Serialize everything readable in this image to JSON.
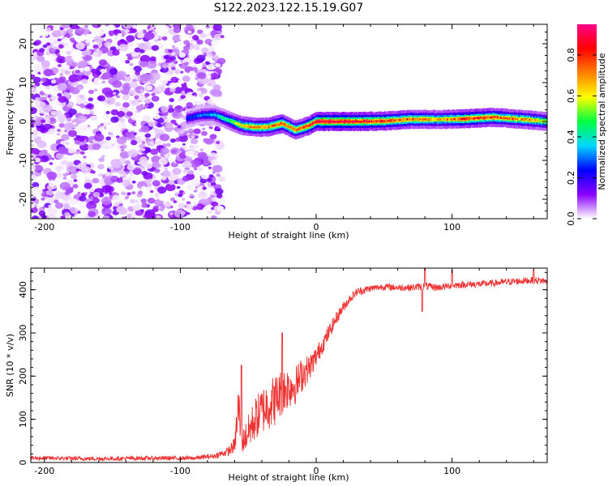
{
  "figure": {
    "title": "S122.2023.122.15.19.G07"
  },
  "chart_data": [
    {
      "type": "heatmap",
      "xlabel": "Height of straight line (km)",
      "ylabel": "Frequency (Hz)",
      "xlim": [
        -210,
        170
      ],
      "ylim": [
        -25,
        25
      ],
      "xticks": [
        -200,
        -100,
        0,
        100
      ],
      "xtick_labels": [
        "-200",
        "-100",
        "0",
        "100"
      ],
      "yticks": [
        -20,
        -10,
        0,
        10,
        20
      ],
      "ytick_labels": [
        "-20",
        "-10",
        "0",
        "10",
        "20"
      ],
      "colorbar": {
        "label": "Normalized spectral amplitude",
        "range": [
          0,
          0.95
        ],
        "ticks": [
          0.0,
          0.2,
          0.4,
          0.6,
          0.8
        ],
        "tick_labels": [
          "0.0",
          "0.2",
          "0.4",
          "0.6",
          "0.8"
        ],
        "colormap": [
          "#ffffff",
          "#8a00ff",
          "#0000ff",
          "#00d8ff",
          "#00ff40",
          "#ffff00",
          "#ff8000",
          "#ff0000",
          "#ff0088"
        ]
      },
      "noise_region": {
        "x_range": [
          -210,
          -75
        ],
        "note_amplitude_max": 0.15
      },
      "ridge": {
        "x": [
          -95,
          -85,
          -75,
          -65,
          -55,
          -45,
          -35,
          -25,
          -15,
          -5,
          0,
          10,
          30,
          50,
          70,
          90,
          110,
          130,
          150,
          170
        ],
        "frequency": [
          0.8,
          1.6,
          1.8,
          0.4,
          -1.0,
          -1.5,
          -1.4,
          -0.5,
          -2.2,
          -1.0,
          0.0,
          0.0,
          0.0,
          0.1,
          0.6,
          0.5,
          0.7,
          1.1,
          0.6,
          0.0
        ],
        "amplitude": [
          0.25,
          0.3,
          0.35,
          0.45,
          0.6,
          0.7,
          0.7,
          0.75,
          0.7,
          0.8,
          0.85,
          0.9,
          0.85,
          0.8,
          0.75,
          0.65,
          0.8,
          0.75,
          0.7,
          0.6
        ]
      }
    },
    {
      "type": "line",
      "xlabel": "Height of straight line (km)",
      "ylabel": "SNR (10 * v/v)",
      "xlim": [
        -210,
        170
      ],
      "ylim": [
        0,
        450
      ],
      "xticks": [
        -200,
        -100,
        0,
        100
      ],
      "xtick_labels": [
        "-200",
        "-100",
        "0",
        "100"
      ],
      "yticks": [
        0,
        100,
        200,
        300,
        400
      ],
      "ytick_labels": [
        "0",
        "100",
        "200",
        "300",
        "400"
      ],
      "color": "#ee3333",
      "series": [
        {
          "name": "SNR",
          "x": [
            -210,
            -190,
            -170,
            -150,
            -130,
            -110,
            -90,
            -75,
            -65,
            -60,
            -57,
            -55,
            -50,
            -45,
            -40,
            -35,
            -30,
            -25,
            -20,
            -15,
            -10,
            -5,
            0,
            5,
            10,
            15,
            20,
            25,
            30,
            40,
            50,
            60,
            70,
            80,
            90,
            100,
            110,
            120,
            130,
            140,
            150,
            160,
            170
          ],
          "y": [
            10,
            10,
            9,
            9,
            10,
            10,
            10,
            15,
            25,
            40,
            130,
            45,
            70,
            100,
            120,
            135,
            145,
            165,
            175,
            180,
            205,
            220,
            245,
            275,
            305,
            335,
            360,
            380,
            395,
            403,
            407,
            405,
            405,
            408,
            405,
            410,
            412,
            413,
            415,
            418,
            420,
            422,
            420
          ],
          "noise": [
            5,
            5,
            5,
            5,
            5,
            5,
            5,
            6,
            10,
            18,
            70,
            25,
            40,
            50,
            55,
            60,
            60,
            55,
            50,
            45,
            40,
            30,
            25,
            20,
            18,
            15,
            12,
            10,
            10,
            8,
            8,
            8,
            8,
            9,
            8,
            8,
            8,
            8,
            8,
            8,
            8,
            8,
            8
          ],
          "spikes": [
            {
              "x": -55,
              "y": 225
            },
            {
              "x": -25,
              "y": 300
            },
            {
              "x": 80,
              "y": 450
            },
            {
              "x": 100,
              "y": 445
            },
            {
              "x": 160,
              "y": 445
            },
            {
              "x": 78,
              "y": 350
            }
          ]
        }
      ]
    }
  ]
}
